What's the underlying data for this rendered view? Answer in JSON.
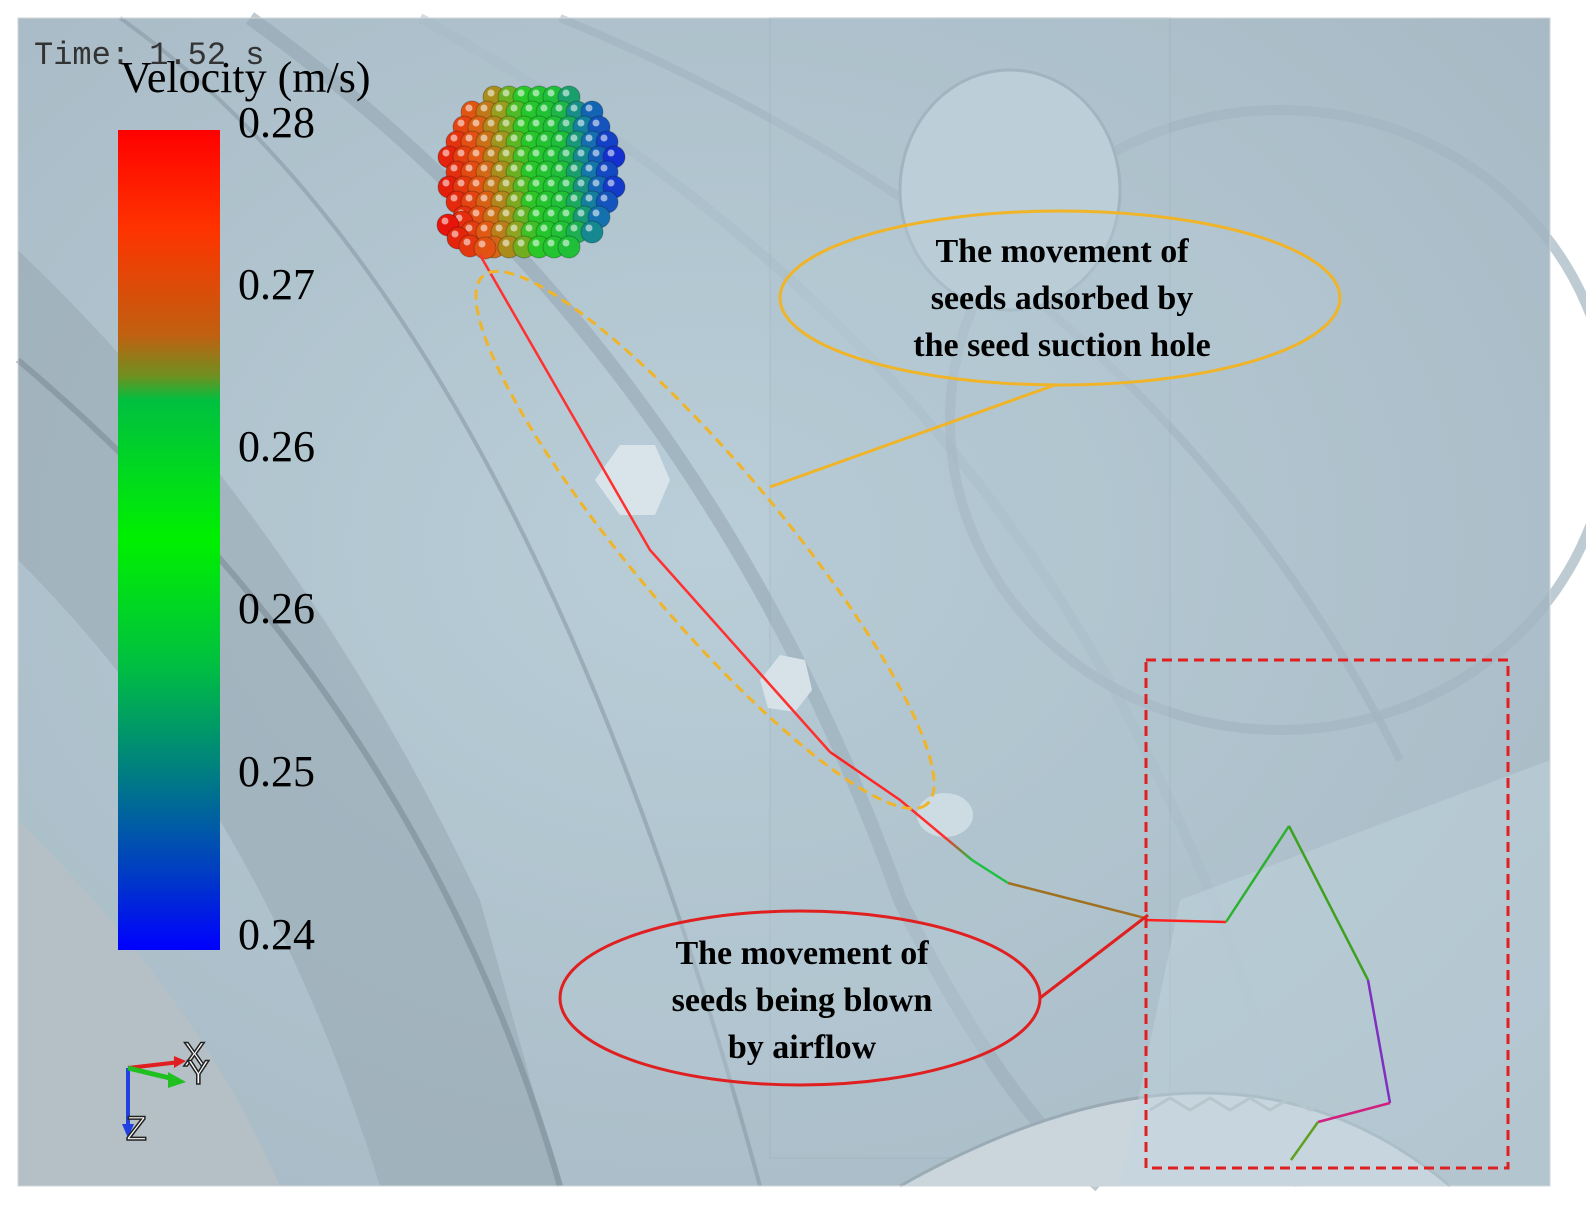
{
  "time_label": "Time: 1.52 s",
  "colorbar": {
    "title": "Velocity (m/s)",
    "ticks": [
      "0.28",
      "0.27",
      "0.26",
      "0.26",
      "0.25",
      "0.24"
    ],
    "colors": [
      "#ff0000",
      "#ff3300",
      "#00e000",
      "#00c000",
      "#00a0a0",
      "#0000ff"
    ]
  },
  "callouts": {
    "adsorbed": {
      "lines": [
        "The movement of",
        "seeds adsorbed by",
        "the seed suction hole"
      ],
      "color": "#f0b429"
    },
    "blown": {
      "lines": [
        "The movement of",
        "seeds being blown",
        "by airflow"
      ],
      "color": "#e02020"
    }
  },
  "axes": {
    "x": "X",
    "y": "Y",
    "z": "Z"
  },
  "icons": [
    "seed-cluster",
    "axis-triad-icon"
  ]
}
